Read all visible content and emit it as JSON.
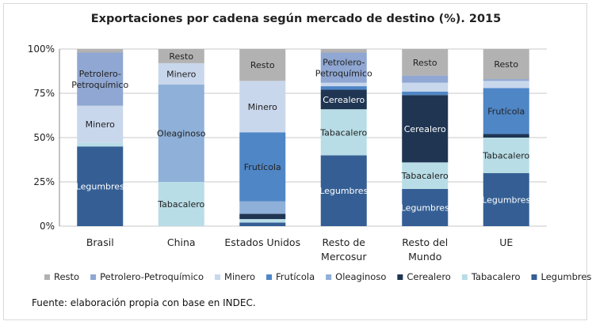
{
  "chart_data": {
    "type": "bar",
    "stacked": true,
    "title": "Exportaciones por cadena según mercado de destino (%). 2015",
    "xlabel": "",
    "ylabel": "",
    "ylim": [
      0,
      100
    ],
    "yticks": [
      "0%",
      "25%",
      "50%",
      "75%",
      "100%"
    ],
    "grid": true,
    "legend_position": "bottom",
    "categories": [
      [
        "Brasil"
      ],
      [
        "China"
      ],
      [
        "Estados Unidos"
      ],
      [
        "Resto de",
        "Mercosur"
      ],
      [
        "Resto del",
        "Mundo"
      ],
      [
        "UE"
      ]
    ],
    "series": [
      {
        "name": "Legumbres",
        "color": "#355f94",
        "values": [
          45,
          0,
          2,
          40,
          21,
          30
        ]
      },
      {
        "name": "Tabacalero",
        "color": "#b8dde6",
        "values": [
          2,
          25,
          2,
          26,
          15,
          20
        ]
      },
      {
        "name": "Cerealero",
        "color": "#1f3552",
        "values": [
          0,
          0,
          3,
          11,
          38,
          2
        ]
      },
      {
        "name": "Oleaginoso",
        "color": "#8fb0d8",
        "values": [
          0,
          55,
          7,
          0,
          0,
          0
        ]
      },
      {
        "name": "Frutícola",
        "color": "#4f86c6",
        "values": [
          0,
          0,
          39,
          2,
          2,
          26
        ]
      },
      {
        "name": "Minero",
        "color": "#c9d7ec",
        "values": [
          21,
          12,
          29,
          2,
          5,
          4
        ]
      },
      {
        "name": "Petrolero-Petroquímico",
        "color": "#8fa7d2",
        "values": [
          30,
          0,
          0,
          17,
          4,
          1
        ]
      },
      {
        "name": "Resto",
        "color": "#b2b2b2",
        "values": [
          2,
          8,
          18,
          2,
          15,
          17
        ]
      }
    ],
    "segment_labels": [
      {
        "category": 0,
        "series": "Legumbres",
        "text": "Legumbres",
        "color": "#ffffff"
      },
      {
        "category": 0,
        "series": "Minero",
        "text": "Minero",
        "color": "#222222"
      },
      {
        "category": 0,
        "series": "Petrolero-Petroquímico",
        "lines": [
          "Petrolero-",
          "Petroquímico"
        ],
        "color": "#222222"
      },
      {
        "category": 1,
        "series": "Tabacalero",
        "text": "Tabacalero",
        "color": "#222222"
      },
      {
        "category": 1,
        "series": "Oleaginoso",
        "text": "Oleaginoso",
        "color": "#222222"
      },
      {
        "category": 1,
        "series": "Minero",
        "text": "Minero",
        "color": "#222222"
      },
      {
        "category": 1,
        "series": "Resto",
        "text": "Resto",
        "color": "#222222"
      },
      {
        "category": 2,
        "series": "Frutícola",
        "text": "Frutícola",
        "color": "#222222"
      },
      {
        "category": 2,
        "series": "Minero",
        "text": "Minero",
        "color": "#222222"
      },
      {
        "category": 2,
        "series": "Resto",
        "text": "Resto",
        "color": "#222222"
      },
      {
        "category": 3,
        "series": "Legumbres",
        "text": "Legumbres",
        "color": "#ffffff"
      },
      {
        "category": 3,
        "series": "Tabacalero",
        "text": "Tabacalero",
        "color": "#222222"
      },
      {
        "category": 3,
        "series": "Cerealero",
        "text": "Cerealero",
        "color": "#ffffff"
      },
      {
        "category": 3,
        "series": "Petrolero-Petroquímico",
        "lines": [
          "Petrolero-",
          "Petroquímico"
        ],
        "color": "#222222"
      },
      {
        "category": 4,
        "series": "Legumbres",
        "text": "Legumbres",
        "color": "#ffffff"
      },
      {
        "category": 4,
        "series": "Tabacalero",
        "text": "Tabacalero",
        "color": "#222222"
      },
      {
        "category": 4,
        "series": "Cerealero",
        "text": "Cerealero",
        "color": "#ffffff"
      },
      {
        "category": 4,
        "series": "Resto",
        "text": "Resto",
        "color": "#222222"
      },
      {
        "category": 5,
        "series": "Legumbres",
        "text": "Legumbres",
        "color": "#ffffff"
      },
      {
        "category": 5,
        "series": "Tabacalero",
        "text": "Tabacalero",
        "color": "#222222"
      },
      {
        "category": 5,
        "series": "Frutícola",
        "text": "Frutícola",
        "color": "#222222"
      },
      {
        "category": 5,
        "series": "Resto",
        "text": "Resto",
        "color": "#222222"
      }
    ],
    "legend_order": [
      "Resto",
      "Petrolero-Petroquímico",
      "Minero",
      "Frutícola",
      "Oleaginoso",
      "Cerealero",
      "Tabacalero",
      "Legumbres"
    ]
  },
  "source": "Fuente:  elaboración propia con base en INDEC."
}
